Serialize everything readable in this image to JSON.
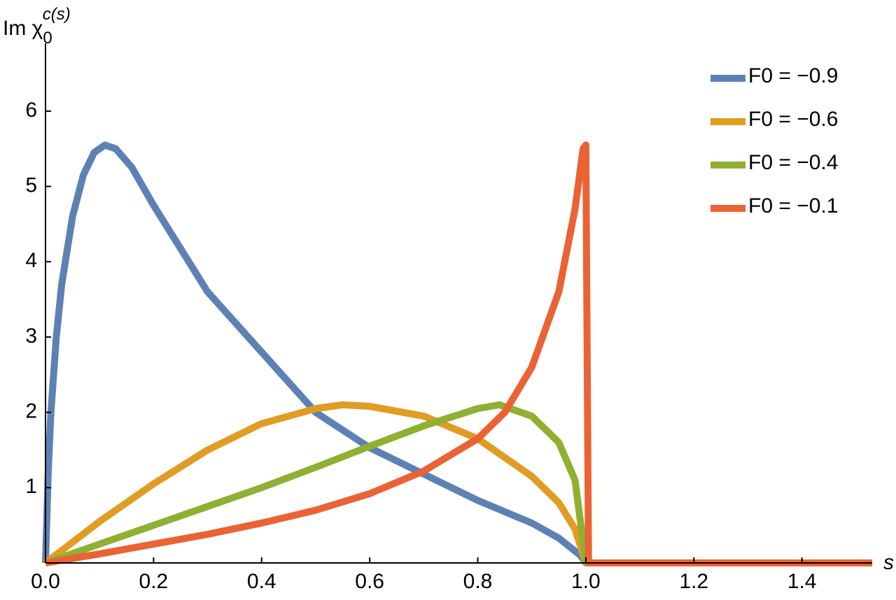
{
  "chart_data": {
    "type": "line",
    "ylabel": {
      "main": "Im χ",
      "sub": "0",
      "sup": "c(s)"
    },
    "xlabel": "s",
    "xlim": [
      0,
      1.53
    ],
    "ylim": [
      0,
      6.9
    ],
    "xticks": [
      {
        "value": 0,
        "label": "0.0"
      },
      0.2,
      0.4,
      0.6,
      0.8,
      {
        "value": 1,
        "label": "1.0"
      },
      1.2,
      1.4
    ],
    "yticks": [
      1,
      2,
      3,
      4,
      5,
      6
    ],
    "legend": "top-right",
    "series": [
      {
        "name": "F0 = −0.9",
        "color": "#5e81b5",
        "x": [
          0,
          0.005,
          0.01,
          0.02,
          0.03,
          0.05,
          0.07,
          0.09,
          0.11,
          0.13,
          0.16,
          0.2,
          0.3,
          0.4,
          0.5,
          0.6,
          0.7,
          0.8,
          0.9,
          0.95,
          0.99,
          1.0,
          1.53
        ],
        "values": [
          0,
          1.2,
          2.0,
          3.0,
          3.7,
          4.6,
          5.15,
          5.45,
          5.55,
          5.5,
          5.25,
          4.75,
          3.6,
          2.8,
          2.0,
          1.53,
          1.18,
          0.83,
          0.53,
          0.33,
          0.1,
          0,
          0
        ]
      },
      {
        "name": "F0 = −0.6",
        "color": "#e19c24",
        "x": [
          0,
          0.1,
          0.2,
          0.3,
          0.4,
          0.5,
          0.55,
          0.6,
          0.7,
          0.8,
          0.9,
          0.95,
          0.98,
          1.0,
          1.53
        ],
        "values": [
          0,
          0.55,
          1.05,
          1.5,
          1.85,
          2.05,
          2.1,
          2.08,
          1.95,
          1.65,
          1.15,
          0.8,
          0.45,
          0,
          0
        ]
      },
      {
        "name": "F0 = −0.4",
        "color": "#8fb032",
        "x": [
          0,
          0.1,
          0.2,
          0.3,
          0.4,
          0.5,
          0.6,
          0.7,
          0.8,
          0.84,
          0.9,
          0.95,
          0.98,
          1.0,
          1.53
        ],
        "values": [
          0,
          0.25,
          0.5,
          0.75,
          1.0,
          1.27,
          1.55,
          1.82,
          2.05,
          2.1,
          1.95,
          1.6,
          1.1,
          0,
          0
        ]
      },
      {
        "name": "F0 = −0.1",
        "color": "#eb6235",
        "x": [
          0,
          0.1,
          0.2,
          0.3,
          0.4,
          0.5,
          0.6,
          0.7,
          0.8,
          0.85,
          0.9,
          0.95,
          0.98,
          0.995,
          1.0,
          1.005,
          1.53
        ],
        "values": [
          0,
          0.12,
          0.25,
          0.38,
          0.53,
          0.7,
          0.92,
          1.22,
          1.65,
          2.0,
          2.6,
          3.6,
          4.7,
          5.5,
          5.55,
          0,
          0
        ]
      }
    ]
  }
}
